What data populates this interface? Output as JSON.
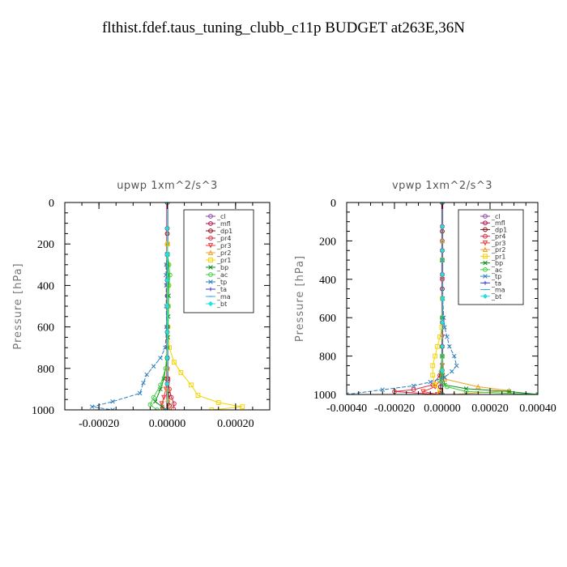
{
  "figure_title": "flthist.fdef.taus_tuning_clubb_c11p  BUDGET at263E,36N",
  "chart_data": [
    {
      "type": "line",
      "title": "upwp   1xm^2/s^3",
      "ylabel": "Pressure [hPa]",
      "xlabel": "",
      "xlim": [
        -0.0003,
        0.0003
      ],
      "ylim": [
        1000,
        0
      ],
      "y_ticks": [
        0,
        200,
        400,
        600,
        800,
        1000
      ],
      "y_tick_labels": [
        "0",
        "200",
        "400",
        "600",
        "800",
        "1000"
      ],
      "x_ticks": [
        -0.0002,
        0,
        0.0002
      ],
      "x_tick_labels": [
        "-0.00020",
        "0.00000",
        "0.00020"
      ],
      "grid": false,
      "legend_position": "top-right",
      "series": [
        {
          "name": "_cl",
          "color": "#8a4aa8",
          "marker": "circle",
          "x": [
            0,
            0,
            0,
            0,
            0,
            0,
            0,
            0,
            0
          ],
          "y": [
            0,
            125,
            250,
            375,
            500,
            625,
            750,
            875,
            1000
          ]
        },
        {
          "name": "_mfl",
          "color": "#b0124f",
          "marker": "circle",
          "x": [
            0,
            0,
            0,
            0,
            0,
            0,
            0,
            0,
            0
          ],
          "y": [
            0,
            125,
            250,
            375,
            500,
            625,
            750,
            875,
            1000
          ]
        },
        {
          "name": "_dp1",
          "color": "#8b0a1a",
          "marker": "circle",
          "x": [
            0,
            0,
            0,
            0,
            0,
            0,
            2e-06,
            4e-06,
            6e-06
          ],
          "y": [
            0,
            150,
            300,
            450,
            600,
            750,
            850,
            925,
            980
          ]
        },
        {
          "name": "_pr4",
          "color": "#d8283e",
          "marker": "circle",
          "x": [
            0,
            0,
            0,
            0,
            2e-06,
            6e-06,
            1.2e-05,
            2e-05,
            1.8e-05
          ],
          "y": [
            200,
            400,
            600,
            800,
            860,
            900,
            940,
            970,
            995
          ]
        },
        {
          "name": "_pr3",
          "color": "#ee3a3a",
          "marker": "triangle-down",
          "x": [
            0,
            0,
            0,
            -4e-06,
            -1e-05,
            -1.6e-05,
            -1.4e-05
          ],
          "y": [
            400,
            700,
            850,
            900,
            940,
            970,
            995
          ]
        },
        {
          "name": "_pr2",
          "color": "#f0a020",
          "marker": "triangle-up",
          "x": [
            0,
            0,
            0,
            0,
            2e-06,
            4e-06
          ],
          "y": [
            200,
            500,
            800,
            900,
            950,
            990
          ]
        },
        {
          "name": "_pr1",
          "color": "#f5d400",
          "marker": "square",
          "x": [
            1e-06,
            2e-06,
            2e-06,
            3e-06,
            2e-06,
            6e-06,
            2e-05,
            4e-05,
            7e-05,
            9e-05,
            0.00015,
            0.00022,
            0.00013
          ],
          "y": [
            200,
            300,
            400,
            500,
            600,
            700,
            770,
            820,
            880,
            930,
            965,
            985,
            1000
          ]
        },
        {
          "name": "_bp",
          "color": "#0a8a1a",
          "marker": "x",
          "x": [
            1e-06,
            3e-06,
            4e-06,
            3e-06,
            2e-06,
            0,
            -1e-05,
            -2e-05,
            -3.5e-05,
            -1.5e-05,
            -5e-06
          ],
          "y": [
            250,
            350,
            450,
            550,
            650,
            750,
            850,
            900,
            960,
            985,
            1000
          ]
        },
        {
          "name": "_ac",
          "color": "#40d040",
          "marker": "circle",
          "x": [
            1e-06,
            5e-06,
            8e-06,
            5e-06,
            3e-06,
            2e-06,
            0,
            -5e-06,
            -2e-05,
            -4e-05,
            -5e-05,
            -3e-05
          ],
          "y": [
            250,
            300,
            350,
            400,
            500,
            600,
            700,
            800,
            880,
            940,
            975,
            1000
          ]
        },
        {
          "name": "_tp",
          "color": "#2c7fbf",
          "marker": "x",
          "x": [
            -1e-06,
            -3e-06,
            -4e-06,
            -3e-06,
            -3e-06,
            -2e-06,
            -6e-06,
            -2e-05,
            -4e-05,
            -6e-05,
            -7e-05,
            -8e-05,
            -0.00016,
            -0.00022,
            -0.00016
          ],
          "y": [
            250,
            300,
            350,
            400,
            500,
            600,
            700,
            750,
            790,
            830,
            870,
            920,
            960,
            985,
            1000
          ]
        },
        {
          "name": "_ta",
          "color": "#3a3ad0",
          "marker": "plus",
          "x": [
            0,
            0,
            0,
            0,
            0,
            0,
            0,
            0,
            0
          ],
          "y": [
            0,
            125,
            250,
            375,
            500,
            625,
            750,
            875,
            1000
          ]
        },
        {
          "name": "_ma",
          "color": "#3aa8e8",
          "marker": "dash",
          "x": [
            0,
            0,
            0,
            0,
            0,
            0,
            0,
            0,
            0
          ],
          "y": [
            0,
            125,
            250,
            375,
            500,
            625,
            750,
            875,
            1000
          ]
        },
        {
          "name": "_bt",
          "color": "#20e0e0",
          "marker": "diamond",
          "x": [
            0,
            0,
            0,
            0,
            0,
            0,
            0,
            0,
            0
          ],
          "y": [
            0,
            125,
            250,
            375,
            500,
            625,
            750,
            875,
            1000
          ]
        }
      ]
    },
    {
      "type": "line",
      "title": "vpwp   1xm^2/s^3",
      "ylabel": "Pressure [hPa]",
      "xlabel": "",
      "xlim": [
        -0.0004,
        0.0004
      ],
      "ylim": [
        1000,
        0
      ],
      "y_ticks": [
        0,
        200,
        400,
        600,
        800,
        1000
      ],
      "y_tick_labels": [
        "0",
        "200",
        "400",
        "600",
        "800",
        "1000"
      ],
      "x_ticks": [
        -0.0004,
        -0.0002,
        0,
        0.0002,
        0.0004
      ],
      "x_tick_labels": [
        "-0.00040",
        "-0.00020",
        "0.00000",
        "0.00020",
        "0.00040"
      ],
      "grid": false,
      "legend_position": "top-right",
      "series": [
        {
          "name": "_cl",
          "color": "#8a4aa8",
          "marker": "circle",
          "x": [
            0,
            0,
            0,
            0,
            0,
            0,
            0,
            0,
            0
          ],
          "y": [
            0,
            125,
            250,
            375,
            500,
            625,
            750,
            875,
            1000
          ]
        },
        {
          "name": "_mfl",
          "color": "#b0124f",
          "marker": "circle",
          "x": [
            0,
            0,
            0,
            0,
            0,
            0,
            0,
            0,
            0
          ],
          "y": [
            0,
            125,
            250,
            375,
            500,
            625,
            750,
            875,
            1000
          ]
        },
        {
          "name": "_dp1",
          "color": "#8b0a1a",
          "marker": "circle",
          "x": [
            0,
            0,
            0,
            0,
            0,
            0,
            -4e-06,
            -8e-06,
            -1e-05
          ],
          "y": [
            0,
            150,
            300,
            450,
            600,
            750,
            900,
            960,
            995
          ]
        },
        {
          "name": "_pr4",
          "color": "#d8283e",
          "marker": "circle",
          "x": [
            0,
            0,
            0,
            0,
            -1e-05,
            -4e-05,
            -0.00012,
            -0.0002,
            -2e-05
          ],
          "y": [
            200,
            400,
            600,
            800,
            900,
            950,
            975,
            985,
            1000
          ]
        },
        {
          "name": "_pr3",
          "color": "#ee3a3a",
          "marker": "triangle-down",
          "x": [
            0,
            0,
            0,
            -4e-06,
            -3e-05,
            -8e-05,
            -2e-05
          ],
          "y": [
            400,
            700,
            850,
            920,
            960,
            985,
            1000
          ]
        },
        {
          "name": "_pr2",
          "color": "#f0a020",
          "marker": "triangle-up",
          "x": [
            0,
            0,
            0,
            1e-05,
            0.00015,
            0.00028,
            5e-05
          ],
          "y": [
            200,
            500,
            800,
            920,
            960,
            980,
            1000
          ]
        },
        {
          "name": "_pr1",
          "color": "#f5d400",
          "marker": "square",
          "x": [
            0,
            0,
            -2e-06,
            -1e-05,
            -2e-05,
            -3e-05,
            -4e-05,
            -4e-05,
            -3e-05,
            -1e-05
          ],
          "y": [
            300,
            500,
            650,
            700,
            750,
            800,
            850,
            900,
            950,
            990
          ]
        },
        {
          "name": "_bp",
          "color": "#0a8a1a",
          "marker": "x",
          "x": [
            0,
            0,
            0,
            2e-06,
            1e-05,
            0.0001,
            0.00028,
            0.0004
          ],
          "y": [
            300,
            600,
            800,
            900,
            950,
            970,
            985,
            1000
          ]
        },
        {
          "name": "_ac",
          "color": "#40d040",
          "marker": "circle",
          "x": [
            0,
            0,
            0,
            -5e-06,
            -1e-05,
            2e-05,
            0.0001,
            0.0004
          ],
          "y": [
            300,
            600,
            800,
            880,
            930,
            960,
            985,
            1000
          ]
        },
        {
          "name": "_tp",
          "color": "#2c7fbf",
          "marker": "x",
          "x": [
            0,
            2e-06,
            6e-06,
            1e-05,
            2e-05,
            3e-05,
            5e-05,
            6e-05,
            4e-05,
            1e-05,
            -5e-05,
            -0.00012,
            -0.00025,
            -0.0004
          ],
          "y": [
            300,
            500,
            600,
            650,
            700,
            750,
            800,
            850,
            880,
            910,
            935,
            955,
            975,
            1000
          ]
        },
        {
          "name": "_ta",
          "color": "#3a3ad0",
          "marker": "plus",
          "x": [
            0,
            0,
            0,
            0,
            0,
            0,
            0,
            0,
            0
          ],
          "y": [
            0,
            125,
            250,
            375,
            500,
            625,
            750,
            875,
            1000
          ]
        },
        {
          "name": "_ma",
          "color": "#3aa8e8",
          "marker": "dash",
          "x": [
            0,
            0,
            0,
            0,
            0,
            0,
            0,
            0,
            0
          ],
          "y": [
            0,
            125,
            250,
            375,
            500,
            625,
            750,
            875,
            1000
          ]
        },
        {
          "name": "_bt",
          "color": "#20e0e0",
          "marker": "diamond",
          "x": [
            0,
            0,
            0,
            0,
            0,
            0,
            0,
            0,
            0
          ],
          "y": [
            0,
            125,
            250,
            375,
            500,
            625,
            750,
            875,
            1000
          ]
        }
      ]
    }
  ]
}
